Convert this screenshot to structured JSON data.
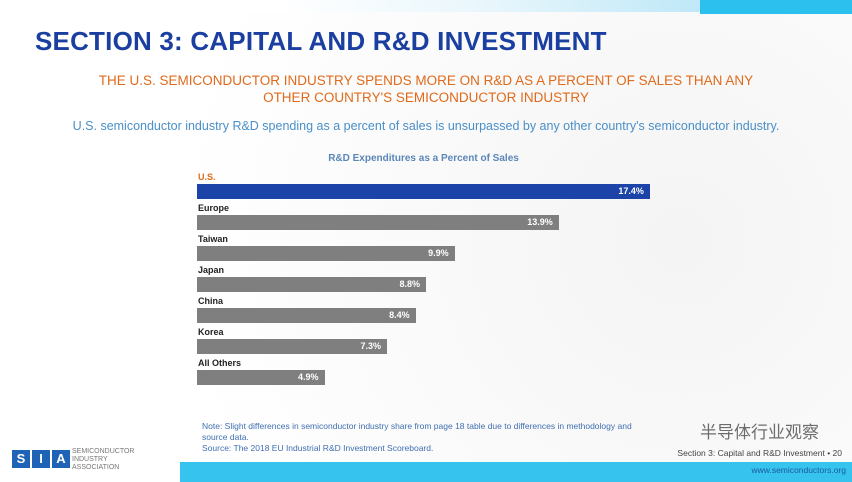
{
  "title": "SECTION 3: CAPITAL AND R&D INVESTMENT",
  "subtitle_line1": "THE U.S. SEMICONDUCTOR INDUSTRY SPENDS MORE ON R&D AS A PERCENT OF SALES THAN ANY",
  "subtitle_line2": "OTHER COUNTRY'S SEMICONDUCTOR INDUSTRY",
  "description": "U.S. semiconductor industry R&D spending as a percent of sales is unsurpassed by any other country's semiconductor industry.",
  "chart_data": {
    "type": "bar",
    "orientation": "horizontal",
    "title": "R&D Expenditures as a Percent of Sales",
    "categories": [
      "U.S.",
      "Europe",
      "Taiwan",
      "Japan",
      "China",
      "Korea",
      "All Others"
    ],
    "values": [
      17.4,
      13.9,
      9.9,
      8.8,
      8.4,
      7.3,
      4.9
    ],
    "data_labels": [
      "17.4%",
      "13.9%",
      "9.9%",
      "8.8%",
      "8.4%",
      "7.3%",
      "4.9%"
    ],
    "colors": {
      "highlight": "#1c43a8",
      "default": "#7f7f7f",
      "highlight_label": "#e06a1a"
    },
    "unit": "%",
    "grid": false
  },
  "note": "Note: Slight differences in semiconductor industry share from page 18 table due to differences in methodology and source data.",
  "source": "Source: The 2018 EU Industrial R&D Investment Scoreboard.",
  "footer": {
    "page": "Section 3: Capital and R&D Investment • 20",
    "url": "www.semiconductors.org",
    "logo_letters": [
      "S",
      "I",
      "A"
    ],
    "logo_text": [
      "SEMICONDUCTOR",
      "INDUSTRY",
      "ASSOCIATION"
    ]
  },
  "watermark": "半导体行业观察"
}
